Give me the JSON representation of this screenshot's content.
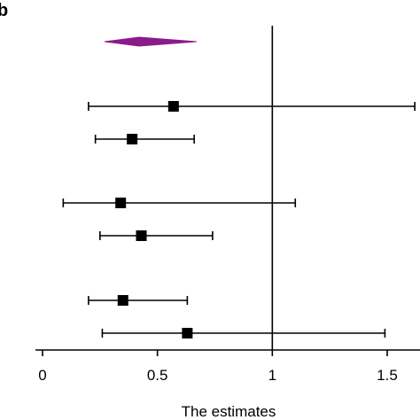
{
  "panel_label": "b",
  "chart_data": {
    "type": "forest",
    "xlabel": "The estimates",
    "xlim": [
      0,
      1.5
    ],
    "x_ticks": [
      0,
      0.5,
      1,
      1.5
    ],
    "x_tick_labels": [
      "0",
      "0.5",
      "1",
      "1.5"
    ],
    "reference_line": 1,
    "summary": {
      "estimate": 0.42,
      "lower": 0.27,
      "upper": 0.67,
      "color": "#8B1A8B"
    },
    "rows": [
      {
        "estimate": 0.57,
        "lower": 0.2,
        "upper": 1.62
      },
      {
        "estimate": 0.39,
        "lower": 0.23,
        "upper": 0.66
      },
      {
        "estimate": 0.34,
        "lower": 0.09,
        "upper": 1.1
      },
      {
        "estimate": 0.43,
        "lower": 0.25,
        "upper": 0.74
      },
      {
        "estimate": 0.35,
        "lower": 0.2,
        "upper": 0.63
      },
      {
        "estimate": 0.63,
        "lower": 0.26,
        "upper": 1.49
      }
    ]
  }
}
